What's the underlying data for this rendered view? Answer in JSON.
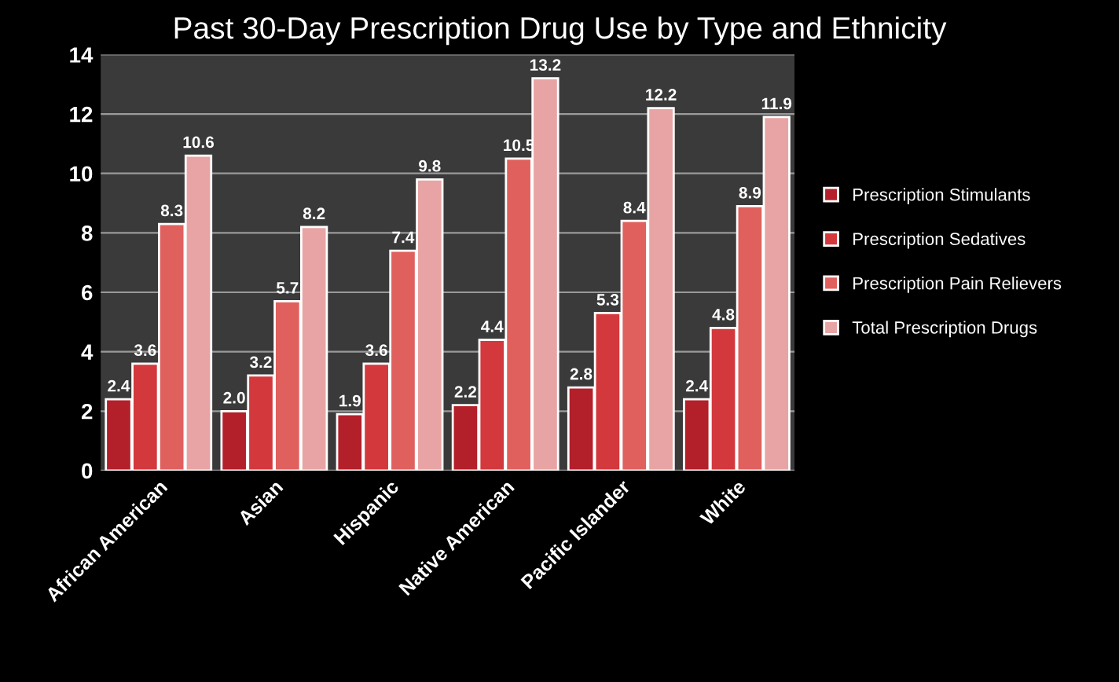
{
  "chart_data": {
    "type": "bar",
    "title": "Past 30-Day Prescription Drug Use by Type and Ethnicity",
    "categories": [
      "African American",
      "Asian",
      "Hispanic",
      "Native American",
      "Pacific Islander",
      "White"
    ],
    "series": [
      {
        "name": "Prescription Stimulants",
        "color": "#b3202a",
        "values": [
          2.4,
          2.0,
          1.9,
          2.2,
          2.8,
          2.4
        ],
        "value_labels": [
          "2.4",
          "2.0",
          "1.9",
          "2.2",
          "2.8",
          "2.4"
        ]
      },
      {
        "name": "Prescription Sedatives",
        "color": "#d2383c",
        "values": [
          3.6,
          3.2,
          3.6,
          4.4,
          5.3,
          4.8
        ],
        "value_labels": [
          "3.6",
          "3.2",
          "3.6",
          "4.4",
          "5.3",
          "4.8"
        ]
      },
      {
        "name": "Prescription Pain Relievers",
        "color": "#e0605e",
        "values": [
          8.3,
          5.7,
          7.4,
          10.5,
          8.4,
          8.9
        ],
        "value_labels": [
          "8.3",
          "5.7",
          "7.4",
          "10.5",
          "8.4",
          "8.9"
        ]
      },
      {
        "name": "Total Prescription Drugs",
        "color": "#e8a4a4",
        "values": [
          10.6,
          8.2,
          9.8,
          13.2,
          12.2,
          11.9
        ],
        "value_labels": [
          "10.6",
          "8.2",
          "9.8",
          "13.2",
          "12.2",
          "11.9"
        ]
      }
    ],
    "ylim": [
      0,
      14
    ],
    "yticks": [
      0,
      2,
      4,
      6,
      8,
      10,
      12,
      14
    ],
    "grid": "y",
    "legend": "right"
  }
}
